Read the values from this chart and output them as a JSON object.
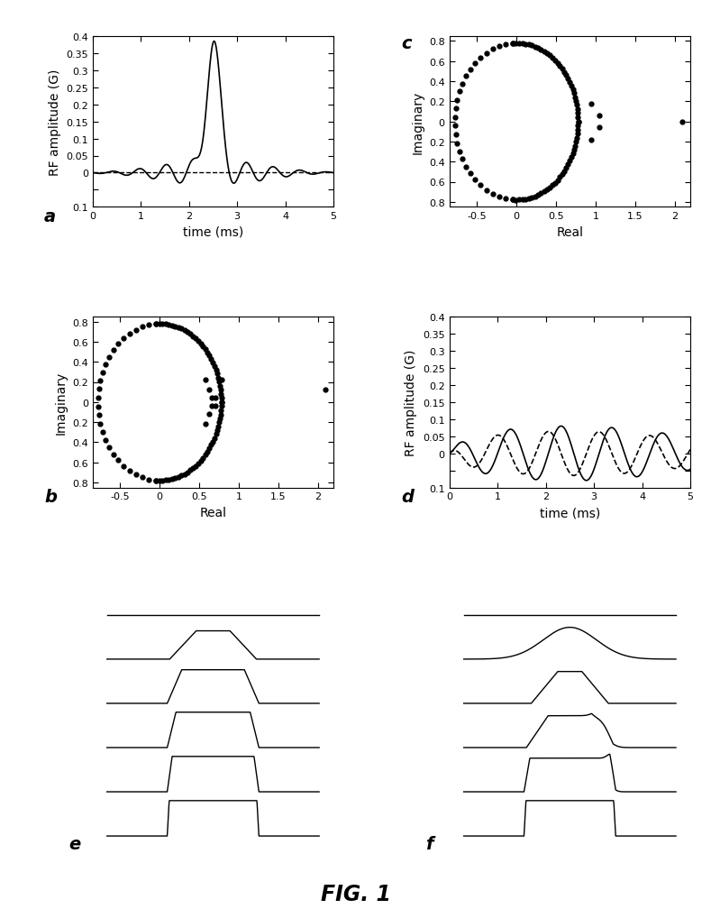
{
  "panel_a": {
    "ylabel": "RF amplitude (G)",
    "xlabel": "time (ms)",
    "label": "a",
    "xlim": [
      0,
      5
    ],
    "ylim": [
      -0.1,
      0.4
    ],
    "yticks": [
      0.4,
      0.35,
      0.3,
      0.25,
      0.2,
      0.15,
      0.1,
      0.05,
      0,
      -0.05,
      -0.1
    ],
    "ytick_labels": [
      "0.4",
      "0.35",
      "0.3",
      "0.25",
      "0.2",
      "0.15",
      "0.1",
      "0.05",
      "0",
      "",
      "0.1"
    ],
    "xticks": [
      0,
      1,
      2,
      3,
      4,
      5
    ]
  },
  "panel_b": {
    "ylabel": "Imaginary",
    "xlabel": "Real",
    "label": "b",
    "xlim": [
      -0.85,
      2.2
    ],
    "ylim": [
      -0.85,
      0.85
    ],
    "yticks": [
      0.8,
      0.6,
      0.4,
      0.2,
      0,
      -0.2,
      -0.4,
      -0.6,
      -0.8
    ],
    "ytick_labels": [
      "0.8",
      "0.6",
      "0.4",
      "0.2",
      "0",
      "0.2",
      "0.4",
      "0.6",
      "0.8"
    ],
    "xticks": [
      -0.5,
      0,
      0.5,
      1,
      1.5,
      2
    ],
    "xtick_labels": [
      "-0.5",
      "0",
      "0.5",
      "1",
      "1.5",
      "2"
    ]
  },
  "panel_c": {
    "ylabel": "Imaginary",
    "xlabel": "Real",
    "label": "c",
    "xlim": [
      -0.85,
      2.2
    ],
    "ylim": [
      -0.85,
      0.85
    ],
    "yticks": [
      0.8,
      0.6,
      0.4,
      0.2,
      0,
      -0.2,
      -0.4,
      -0.6,
      -0.8
    ],
    "ytick_labels": [
      "0.8",
      "0.6",
      "0.4",
      "0.2",
      "0",
      "0.2",
      "0.4",
      "0.6",
      "0.8"
    ],
    "xticks": [
      -0.5,
      0,
      0.5,
      1,
      1.5,
      2
    ],
    "xtick_labels": [
      "-0.5",
      "0",
      "0.5",
      "1",
      "1.5",
      "2"
    ]
  },
  "panel_d": {
    "ylabel": "RF amplitude (G)",
    "xlabel": "time (ms)",
    "label": "d",
    "xlim": [
      0,
      5
    ],
    "ylim": [
      -0.1,
      0.4
    ],
    "yticks": [
      0.4,
      0.35,
      0.3,
      0.25,
      0.2,
      0.15,
      0.1,
      0.05,
      0,
      -0.05,
      -0.1
    ],
    "ytick_labels": [
      "0.4",
      "0.35",
      "0.3",
      "0.25",
      "0.2",
      "0.15",
      "0.1",
      "0.05",
      "0",
      "",
      "0.1"
    ],
    "xticks": [
      0,
      1,
      2,
      3,
      4,
      5
    ]
  },
  "fig_title": "FIG. 1",
  "background_color": "#ffffff",
  "line_color": "#000000"
}
